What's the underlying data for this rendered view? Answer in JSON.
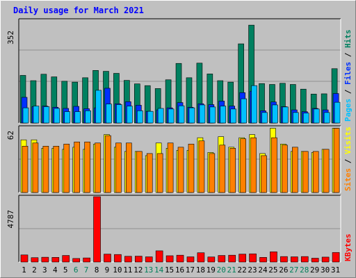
{
  "chart_data": [
    {
      "type": "bar",
      "title": "Daily usage for March 2021",
      "y_max_label": "352",
      "side_labels": [
        "Pages",
        "Files",
        "Hits"
      ],
      "side_label_colors": [
        "#00c0ff",
        "#0030ff",
        "#008060"
      ],
      "categories": [
        "1",
        "2",
        "3",
        "4",
        "5",
        "6",
        "7",
        "8",
        "9",
        "10",
        "11",
        "12",
        "13",
        "14",
        "15",
        "16",
        "17",
        "18",
        "19",
        "20",
        "21",
        "22",
        "23",
        "24",
        "25",
        "26",
        "27",
        "28",
        "29",
        "30",
        "31"
      ],
      "weekend_days": [
        "6",
        "7",
        "13",
        "14",
        "20",
        "21",
        "27",
        "28"
      ],
      "ylim": [
        0,
        352
      ],
      "series": [
        {
          "name": "Hits",
          "color": "#008060",
          "values": [
            163,
            145,
            167,
            158,
            143,
            140,
            155,
            180,
            177,
            170,
            146,
            134,
            128,
            118,
            148,
            204,
            155,
            205,
            168,
            145,
            140,
            271,
            335,
            135,
            132,
            136,
            132,
            116,
            99,
            100,
            186
          ]
        },
        {
          "name": "Files",
          "color": "#0030ff",
          "values": [
            88,
            56,
            58,
            54,
            50,
            57,
            49,
            52,
            119,
            66,
            73,
            61,
            40,
            45,
            52,
            70,
            54,
            66,
            63,
            75,
            58,
            104,
            109,
            42,
            72,
            56,
            45,
            39,
            50,
            45,
            101
          ]
        },
        {
          "name": "Pages",
          "color": "#00c0ff",
          "values": [
            52,
            58,
            56,
            50,
            39,
            39,
            42,
            112,
            65,
            63,
            58,
            42,
            40,
            50,
            48,
            59,
            52,
            62,
            55,
            58,
            48,
            83,
            128,
            36,
            62,
            55,
            36,
            34,
            48,
            36,
            71
          ]
        }
      ]
    },
    {
      "type": "bar",
      "y_max_label": "62",
      "side_labels": [
        "Sites",
        "Visits"
      ],
      "side_label_colors": [
        "#ff8000",
        "#ffff00"
      ],
      "categories": [
        "1",
        "2",
        "3",
        "4",
        "5",
        "6",
        "7",
        "8",
        "9",
        "10",
        "11",
        "12",
        "13",
        "14",
        "15",
        "16",
        "17",
        "18",
        "19",
        "20",
        "21",
        "22",
        "23",
        "24",
        "25",
        "26",
        "27",
        "28",
        "29",
        "30",
        "31"
      ],
      "ylim": [
        0,
        62
      ],
      "series": [
        {
          "name": "Visits",
          "color": "#ffff00",
          "values": [
            50,
            50,
            42,
            42,
            41,
            43,
            41,
            46,
            55,
            43,
            39,
            39,
            35,
            47,
            42,
            40,
            40,
            52,
            38,
            53,
            43,
            52,
            55,
            37,
            61,
            46,
            39,
            39,
            38,
            41,
            61
          ]
        },
        {
          "name": "Sites",
          "color": "#ff8000",
          "values": [
            44,
            47,
            44,
            44,
            46,
            48,
            48,
            47,
            54,
            47,
            47,
            39,
            37,
            37,
            47,
            43,
            46,
            49,
            37,
            45,
            42,
            51,
            52,
            35,
            52,
            45,
            43,
            39,
            39,
            41,
            61
          ]
        }
      ]
    },
    {
      "type": "bar",
      "y_max_label": "4787",
      "side_labels": [
        "KBytes"
      ],
      "side_label_colors": [
        "#ff0000"
      ],
      "categories": [
        "1",
        "2",
        "3",
        "4",
        "5",
        "6",
        "7",
        "8",
        "9",
        "10",
        "11",
        "12",
        "13",
        "14",
        "15",
        "16",
        "17",
        "18",
        "19",
        "20",
        "21",
        "22",
        "23",
        "24",
        "25",
        "26",
        "27",
        "28",
        "29",
        "30",
        "31"
      ],
      "ylim": [
        0,
        4787
      ],
      "series": [
        {
          "name": "KBytes",
          "color": "#ff0000",
          "values": [
            520,
            320,
            350,
            340,
            480,
            260,
            300,
            4787,
            580,
            550,
            420,
            430,
            380,
            820,
            460,
            500,
            380,
            680,
            370,
            480,
            500,
            580,
            600,
            340,
            750,
            400,
            380,
            400,
            280,
            360,
            700
          ]
        }
      ]
    }
  ]
}
